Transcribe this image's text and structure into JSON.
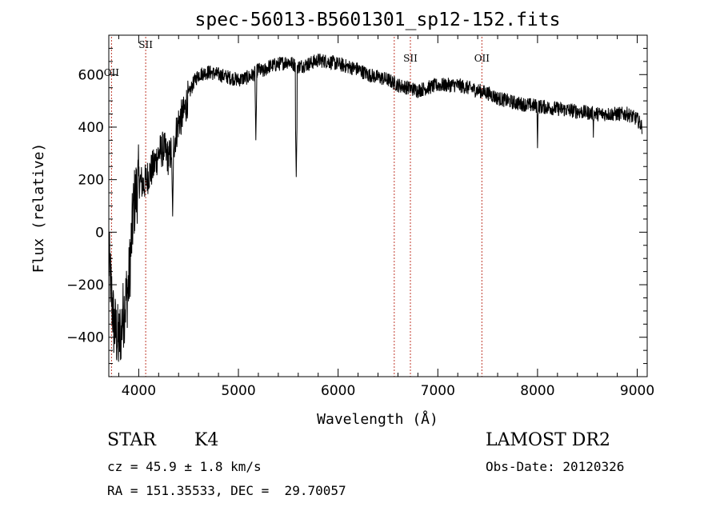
{
  "chart_data": {
    "type": "line",
    "title": "spec-56013-B5601301_sp12-152.fits",
    "xlabel": "Wavelength (Å)",
    "ylabel": "Flux (relative)",
    "xlim": [
      3700,
      9100
    ],
    "ylim": [
      -550,
      750
    ],
    "xticks": [
      4000,
      5000,
      6000,
      7000,
      8000,
      9000
    ],
    "xtick_labels": [
      "4000",
      "5000",
      "6000",
      "7000",
      "8000",
      "9000"
    ],
    "yticks": [
      -400,
      -200,
      0,
      200,
      400,
      600
    ],
    "ytick_labels": [
      "−400",
      "−200",
      "0",
      "200",
      "400",
      "600"
    ],
    "grid": false,
    "line_color": "#000000",
    "marker_color": "#c0392b",
    "lines": [
      {
        "label": "OII",
        "x": 3727
      },
      {
        "label": "SII",
        "x": 4070
      },
      {
        "label": "",
        "x": 6563
      },
      {
        "label": "SII",
        "x": 6725
      },
      {
        "label": "OII",
        "x": 7442
      }
    ],
    "spectrum_anchors": {
      "x": [
        3700,
        3750,
        3800,
        3850,
        3900,
        3950,
        4000,
        4050,
        4100,
        4150,
        4200,
        4250,
        4300,
        4350,
        4400,
        4450,
        4500,
        4550,
        4600,
        4700,
        4800,
        4900,
        5000,
        5100,
        5150,
        5200,
        5250,
        5300,
        5400,
        5500,
        5600,
        5700,
        5800,
        5900,
        6000,
        6100,
        6200,
        6300,
        6400,
        6500,
        6600,
        6700,
        6800,
        6900,
        7000,
        7100,
        7200,
        7300,
        7400,
        7500,
        7600,
        7700,
        7800,
        7900,
        8000,
        8100,
        8200,
        8300,
        8400,
        8500,
        8600,
        8700,
        8800,
        8900,
        9000,
        9050
      ],
      "y": [
        -100,
        -350,
        -420,
        -300,
        -200,
        100,
        200,
        180,
        220,
        250,
        300,
        320,
        280,
        330,
        420,
        450,
        520,
        570,
        600,
        610,
        600,
        590,
        580,
        590,
        600,
        620,
        610,
        630,
        640,
        650,
        630,
        640,
        655,
        650,
        640,
        630,
        620,
        600,
        590,
        580,
        560,
        550,
        540,
        550,
        560,
        560,
        560,
        550,
        540,
        530,
        510,
        500,
        490,
        485,
        480,
        475,
        470,
        465,
        460,
        455,
        450,
        450,
        450,
        450,
        430,
        400
      ]
    },
    "absorption_features": [
      {
        "x": 5175,
        "y": 350
      },
      {
        "x": 5580,
        "y": 210
      },
      {
        "x": 4340,
        "y": 60
      },
      {
        "x": 3820,
        "y": -480
      },
      {
        "x": 8000,
        "y": 320
      },
      {
        "x": 8560,
        "y": 360
      }
    ]
  },
  "info": {
    "class_label": "STAR",
    "subclass_label": "K4",
    "survey_label": "LAMOST DR2",
    "cz_text": "cz = 45.9 ± 1.8 km/s",
    "obs_date_text": "Obs-Date: 20120326",
    "radec_text": "RA = 151.35533, DEC =  29.70057"
  }
}
